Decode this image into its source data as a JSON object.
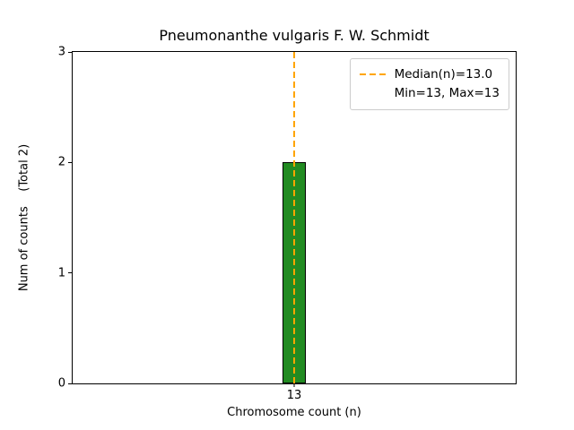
{
  "chart_data": {
    "type": "bar",
    "title": "Pneumonanthe vulgaris F. W. Schmidt",
    "xlabel": "Chromosome count (n)",
    "ylabel": "Num of counts    (Total 2)",
    "categories": [
      "13"
    ],
    "values": [
      2
    ],
    "ylim": [
      0,
      3
    ],
    "yticks": [
      0,
      1,
      2,
      3
    ],
    "grid": false,
    "bar_color": "#228B22",
    "bar_edge_color": "#000000",
    "median_line": {
      "x": 13,
      "color": "#FFA500",
      "style": "dashed"
    },
    "legend": {
      "position": "top-right",
      "entries": [
        {
          "label": "Median(n)=13.0",
          "sample": "dashed-orange-line"
        },
        {
          "label": "Min=13, Max=13",
          "sample": "none"
        }
      ]
    }
  }
}
